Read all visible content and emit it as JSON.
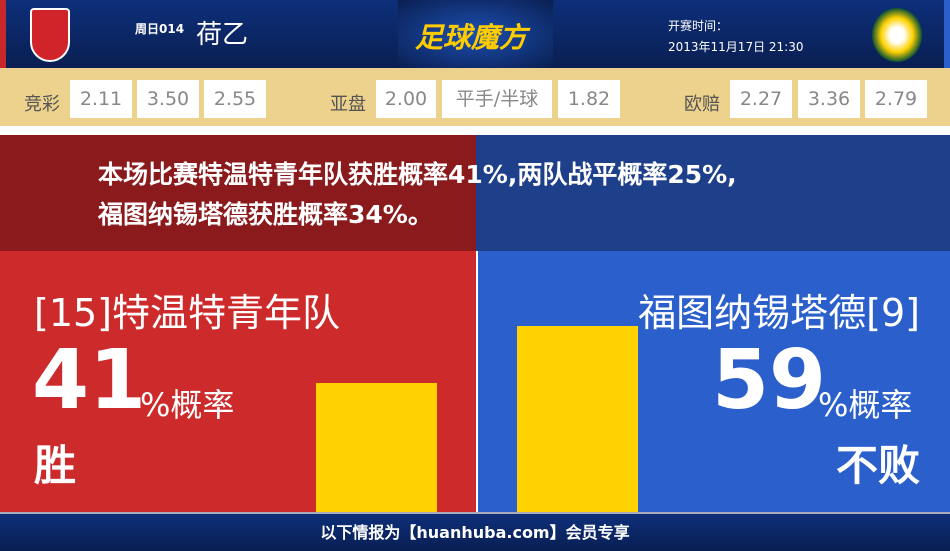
{
  "header": {
    "week": "周日014",
    "league": "荷乙",
    "brand": "足球魔方",
    "kickoff_label": "开赛时间：",
    "kickoff_time": "2013年11月17日 21:30"
  },
  "odds": {
    "jingcai_label": "竞彩",
    "jingcai": [
      "2.11",
      "3.50",
      "2.55"
    ],
    "asian_label": "亚盘",
    "asian": [
      "2.00",
      "平手/半球",
      "1.82"
    ],
    "euro_label": "欧赔",
    "euro": [
      "2.27",
      "3.36",
      "2.79"
    ]
  },
  "summary": {
    "line1": "本场比赛特温特青年队获胜概率41%,两队战平概率25%,",
    "line2": "福图纳锡塔德获胜概率34%。"
  },
  "home": {
    "name": "[15]特温特青年队",
    "pct": "41",
    "unit": "%概率",
    "result": "胜",
    "fraction": 0.41
  },
  "away": {
    "name": "福图纳锡塔德[9]",
    "pct": "59",
    "unit": "%概率",
    "result": "不败",
    "fraction": 0.59
  },
  "colors": {
    "home": "#cd2a2b",
    "away": "#2a5fcc",
    "bar": "#ffd200"
  },
  "footer": "以下情报为【huanhuba.com】会员专享"
}
